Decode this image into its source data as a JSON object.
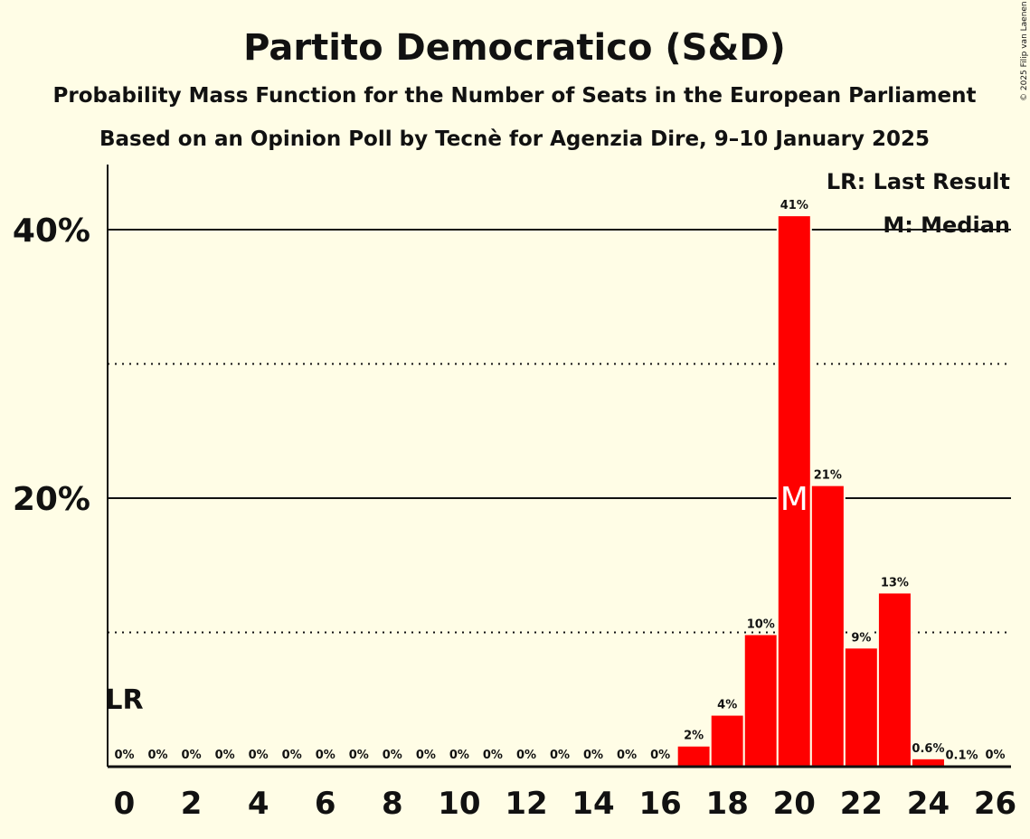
{
  "chart_data": {
    "type": "bar",
    "title": "Partito Democratico (S&D)",
    "subtitle1": "Probability Mass Function for the Number of Seats in the European Parliament",
    "subtitle2": "Based on an Opinion Poll by Tecnè for Agenzia Dire, 9–10 January 2025",
    "copyright": "© 2025 Filip van Laenen",
    "x": [
      0,
      1,
      2,
      3,
      4,
      5,
      6,
      7,
      8,
      9,
      10,
      11,
      12,
      13,
      14,
      15,
      16,
      17,
      18,
      19,
      20,
      21,
      22,
      23,
      24,
      25,
      26
    ],
    "values": [
      0,
      0,
      0,
      0,
      0,
      0,
      0,
      0,
      0,
      0,
      0,
      0,
      0,
      0,
      0,
      0,
      0,
      1.5,
      3.8,
      9.8,
      41.0,
      20.9,
      8.8,
      12.9,
      0.55,
      0.05,
      0
    ],
    "labels": [
      "0%",
      "0%",
      "0%",
      "0%",
      "0%",
      "0%",
      "0%",
      "0%",
      "0%",
      "0%",
      "0%",
      "0%",
      "0%",
      "0%",
      "0%",
      "0%",
      "0%",
      "2%",
      "4%",
      "10%",
      "41%",
      "21%",
      "9%",
      "13%",
      "0.6%",
      "0.1%",
      "0%"
    ],
    "xticks": [
      "0",
      "2",
      "4",
      "6",
      "8",
      "10",
      "12",
      "14",
      "16",
      "18",
      "20",
      "22",
      "24",
      "26"
    ],
    "yticks": [
      {
        "value": 20,
        "label": "20%"
      },
      {
        "value": 40,
        "label": "40%"
      }
    ],
    "minor_grid": [
      10,
      30
    ],
    "ylim": [
      0,
      45
    ],
    "xlim": [
      -0.5,
      26.5
    ],
    "bar_color": "#FF0000",
    "last_result": {
      "seat": 0,
      "marker": "LR"
    },
    "median": {
      "seat": 20,
      "marker": "M"
    },
    "legend": {
      "lr": "LR: Last Result",
      "m": "M: Median",
      "position": "top-right"
    }
  }
}
